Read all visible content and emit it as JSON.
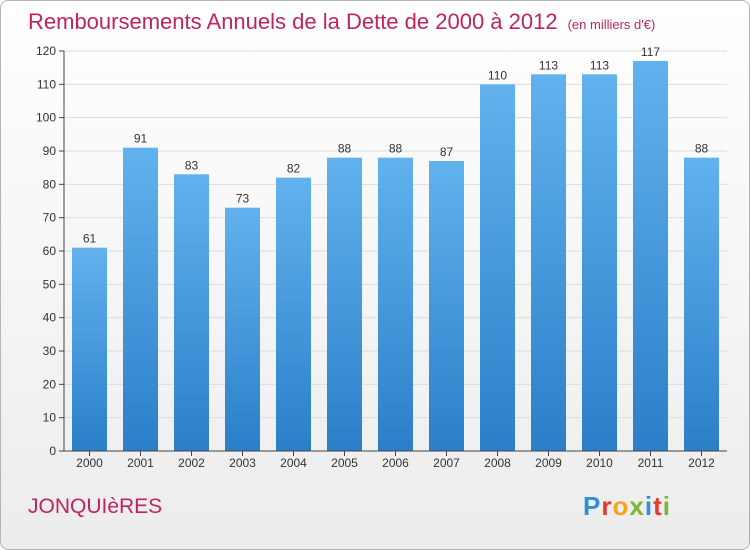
{
  "header": {
    "title": "Remboursements Annuels de la Dette de 2000 à 2012",
    "subtitle": "(en milliers d'€)"
  },
  "footer": {
    "commune": "JONQUIèRES",
    "logo_text": "Proxiti",
    "logo_colors": [
      "#2e8fd6",
      "#e23b2e",
      "#f2a51a",
      "#7ab735",
      "#2e8fd6",
      "#e23b2e",
      "#7ab735"
    ]
  },
  "colors": {
    "title": "#c0245c",
    "bar_top": "#61b2ee",
    "bar_bottom": "#2a7fc8",
    "axis": "#444444",
    "grid": "#dcdcdc"
  },
  "chart_data": {
    "type": "bar",
    "title": "Remboursements Annuels de la Dette de 2000 à 2012",
    "subtitle": "(en milliers d'€)",
    "xlabel": "",
    "ylabel": "",
    "categories": [
      "2000",
      "2001",
      "2002",
      "2003",
      "2004",
      "2005",
      "2006",
      "2007",
      "2008",
      "2009",
      "2010",
      "2011",
      "2012"
    ],
    "values": [
      61,
      91,
      83,
      73,
      82,
      88,
      88,
      87,
      110,
      113,
      113,
      117,
      88
    ],
    "ylim": [
      0,
      120
    ],
    "yticks": [
      0,
      10,
      20,
      30,
      40,
      50,
      60,
      70,
      80,
      90,
      100,
      110,
      120
    ],
    "grid": true,
    "data_labels": true
  }
}
